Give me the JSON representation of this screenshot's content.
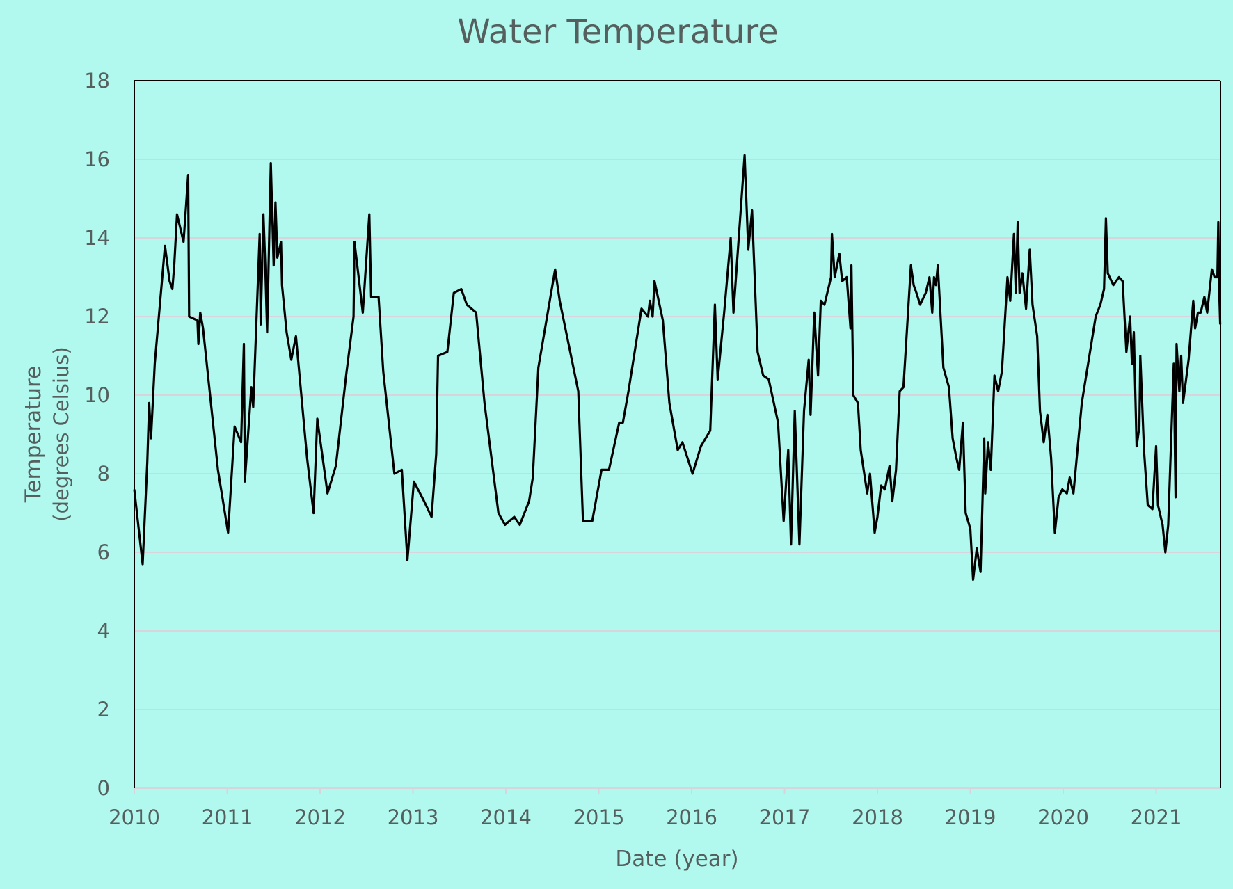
{
  "chart_data": {
    "type": "line",
    "title": "Water Temperature",
    "xlabel": "Date (year)",
    "ylabel": "Temperature",
    "ylabel_sub": "(degrees Celsius)",
    "xlim": [
      2010,
      2021.69
    ],
    "ylim": [
      0,
      18
    ],
    "x_ticks": [
      "2010",
      "2011",
      "2012",
      "2013",
      "2014",
      "2015",
      "2016",
      "2017",
      "2018",
      "2019",
      "2020",
      "2021"
    ],
    "y_ticks": [
      "0",
      "2",
      "4",
      "6",
      "8",
      "10",
      "12",
      "14",
      "16",
      "18"
    ],
    "grid": true,
    "colors": {
      "background": "#b1f9ee",
      "line": "#000000",
      "grid": "#d9d4dc",
      "text": "#555f5d"
    },
    "series": [
      {
        "name": "Water Temperature",
        "points": [
          [
            2010.0,
            7.6
          ],
          [
            2010.09,
            5.7
          ],
          [
            2010.14,
            8.3
          ],
          [
            2010.16,
            9.8
          ],
          [
            2010.18,
            8.9
          ],
          [
            2010.22,
            10.8
          ],
          [
            2010.33,
            13.8
          ],
          [
            2010.38,
            12.9
          ],
          [
            2010.41,
            12.7
          ],
          [
            2010.43,
            13.3
          ],
          [
            2010.46,
            14.6
          ],
          [
            2010.53,
            13.9
          ],
          [
            2010.58,
            15.6
          ],
          [
            2010.59,
            12.0
          ],
          [
            2010.68,
            11.9
          ],
          [
            2010.69,
            11.3
          ],
          [
            2010.71,
            12.1
          ],
          [
            2010.74,
            11.7
          ],
          [
            2010.9,
            8.1
          ],
          [
            2011.01,
            6.5
          ],
          [
            2011.08,
            9.2
          ],
          [
            2011.15,
            8.8
          ],
          [
            2011.18,
            11.3
          ],
          [
            2011.19,
            7.8
          ],
          [
            2011.26,
            10.2
          ],
          [
            2011.28,
            9.7
          ],
          [
            2011.35,
            14.1
          ],
          [
            2011.36,
            11.8
          ],
          [
            2011.39,
            14.6
          ],
          [
            2011.41,
            13.3
          ],
          [
            2011.43,
            11.6
          ],
          [
            2011.47,
            15.9
          ],
          [
            2011.5,
            13.3
          ],
          [
            2011.52,
            14.9
          ],
          [
            2011.54,
            13.5
          ],
          [
            2011.58,
            13.9
          ],
          [
            2011.59,
            12.8
          ],
          [
            2011.64,
            11.6
          ],
          [
            2011.69,
            10.9
          ],
          [
            2011.74,
            11.5
          ],
          [
            2011.86,
            8.4
          ],
          [
            2011.93,
            7.0
          ],
          [
            2011.97,
            9.4
          ],
          [
            2012.08,
            7.5
          ],
          [
            2012.17,
            8.2
          ],
          [
            2012.28,
            10.5
          ],
          [
            2012.36,
            12.0
          ],
          [
            2012.37,
            13.9
          ],
          [
            2012.42,
            12.9
          ],
          [
            2012.46,
            12.1
          ],
          [
            2012.53,
            14.6
          ],
          [
            2012.55,
            12.5
          ],
          [
            2012.63,
            12.5
          ],
          [
            2012.68,
            10.6
          ],
          [
            2012.8,
            8.0
          ],
          [
            2012.88,
            8.1
          ],
          [
            2012.94,
            5.8
          ],
          [
            2013.01,
            7.8
          ],
          [
            2013.12,
            7.3
          ],
          [
            2013.2,
            6.9
          ],
          [
            2013.25,
            8.5
          ],
          [
            2013.27,
            11.0
          ],
          [
            2013.37,
            11.1
          ],
          [
            2013.44,
            12.6
          ],
          [
            2013.52,
            12.7
          ],
          [
            2013.58,
            12.3
          ],
          [
            2013.68,
            12.1
          ],
          [
            2013.77,
            9.8
          ],
          [
            2013.92,
            7.0
          ],
          [
            2013.99,
            6.7
          ],
          [
            2014.09,
            6.9
          ],
          [
            2014.15,
            6.7
          ],
          [
            2014.25,
            7.3
          ],
          [
            2014.29,
            7.9
          ],
          [
            2014.35,
            10.7
          ],
          [
            2014.53,
            13.2
          ],
          [
            2014.58,
            12.4
          ],
          [
            2014.78,
            10.1
          ],
          [
            2014.83,
            6.8
          ],
          [
            2014.93,
            6.8
          ],
          [
            2015.03,
            8.1
          ],
          [
            2015.11,
            8.1
          ],
          [
            2015.22,
            9.3
          ],
          [
            2015.26,
            9.3
          ],
          [
            2015.32,
            10.1
          ],
          [
            2015.46,
            12.2
          ],
          [
            2015.53,
            12.0
          ],
          [
            2015.55,
            12.4
          ],
          [
            2015.58,
            12.0
          ],
          [
            2015.6,
            12.9
          ],
          [
            2015.69,
            11.9
          ],
          [
            2015.76,
            9.8
          ],
          [
            2015.85,
            8.6
          ],
          [
            2015.9,
            8.8
          ],
          [
            2016.01,
            8.0
          ],
          [
            2016.1,
            8.7
          ],
          [
            2016.2,
            9.1
          ],
          [
            2016.25,
            12.3
          ],
          [
            2016.28,
            10.4
          ],
          [
            2016.35,
            12.1
          ],
          [
            2016.42,
            14.0
          ],
          [
            2016.45,
            12.1
          ],
          [
            2016.57,
            16.1
          ],
          [
            2016.61,
            13.7
          ],
          [
            2016.65,
            14.7
          ],
          [
            2016.71,
            11.1
          ],
          [
            2016.77,
            10.5
          ],
          [
            2016.83,
            10.4
          ],
          [
            2016.93,
            9.3
          ],
          [
            2016.99,
            6.8
          ],
          [
            2017.04,
            8.6
          ],
          [
            2017.07,
            6.2
          ],
          [
            2017.11,
            9.6
          ],
          [
            2017.16,
            6.2
          ],
          [
            2017.21,
            9.6
          ],
          [
            2017.26,
            10.9
          ],
          [
            2017.28,
            9.5
          ],
          [
            2017.32,
            12.1
          ],
          [
            2017.36,
            10.5
          ],
          [
            2017.39,
            12.4
          ],
          [
            2017.43,
            12.3
          ],
          [
            2017.5,
            13.0
          ],
          [
            2017.51,
            14.1
          ],
          [
            2017.54,
            13.0
          ],
          [
            2017.59,
            13.6
          ],
          [
            2017.62,
            12.9
          ],
          [
            2017.67,
            13.0
          ],
          [
            2017.71,
            11.7
          ],
          [
            2017.72,
            13.3
          ],
          [
            2017.74,
            10.0
          ],
          [
            2017.79,
            9.8
          ],
          [
            2017.82,
            8.6
          ],
          [
            2017.89,
            7.5
          ],
          [
            2017.92,
            8.0
          ],
          [
            2017.97,
            6.5
          ],
          [
            2018.0,
            6.9
          ],
          [
            2018.04,
            7.7
          ],
          [
            2018.08,
            7.6
          ],
          [
            2018.13,
            8.2
          ],
          [
            2018.16,
            7.3
          ],
          [
            2018.2,
            8.1
          ],
          [
            2018.24,
            10.1
          ],
          [
            2018.28,
            10.2
          ],
          [
            2018.36,
            13.3
          ],
          [
            2018.39,
            12.8
          ],
          [
            2018.42,
            12.6
          ],
          [
            2018.46,
            12.3
          ],
          [
            2018.52,
            12.6
          ],
          [
            2018.56,
            13.0
          ],
          [
            2018.59,
            12.1
          ],
          [
            2018.61,
            13.0
          ],
          [
            2018.63,
            12.8
          ],
          [
            2018.65,
            13.3
          ],
          [
            2018.71,
            10.7
          ],
          [
            2018.77,
            10.2
          ],
          [
            2018.81,
            8.9
          ],
          [
            2018.85,
            8.4
          ],
          [
            2018.88,
            8.1
          ],
          [
            2018.92,
            9.3
          ],
          [
            2018.95,
            7.0
          ],
          [
            2019.0,
            6.6
          ],
          [
            2019.03,
            5.3
          ],
          [
            2019.07,
            6.1
          ],
          [
            2019.11,
            5.5
          ],
          [
            2019.15,
            8.9
          ],
          [
            2019.16,
            7.5
          ],
          [
            2019.19,
            8.8
          ],
          [
            2019.22,
            8.1
          ],
          [
            2019.26,
            10.5
          ],
          [
            2019.3,
            10.1
          ],
          [
            2019.34,
            10.6
          ],
          [
            2019.4,
            13.0
          ],
          [
            2019.43,
            12.4
          ],
          [
            2019.47,
            14.1
          ],
          [
            2019.49,
            12.6
          ],
          [
            2019.51,
            14.4
          ],
          [
            2019.53,
            12.6
          ],
          [
            2019.56,
            13.1
          ],
          [
            2019.6,
            12.2
          ],
          [
            2019.64,
            13.7
          ],
          [
            2019.67,
            12.3
          ],
          [
            2019.72,
            11.5
          ],
          [
            2019.75,
            9.6
          ],
          [
            2019.79,
            8.8
          ],
          [
            2019.83,
            9.5
          ],
          [
            2019.87,
            8.4
          ],
          [
            2019.91,
            6.5
          ],
          [
            2019.95,
            7.4
          ],
          [
            2019.99,
            7.6
          ],
          [
            2020.04,
            7.5
          ],
          [
            2020.07,
            7.9
          ],
          [
            2020.11,
            7.5
          ],
          [
            2020.2,
            9.8
          ],
          [
            2020.35,
            12.0
          ],
          [
            2020.4,
            12.3
          ],
          [
            2020.44,
            12.7
          ],
          [
            2020.46,
            14.5
          ],
          [
            2020.48,
            13.1
          ],
          [
            2020.54,
            12.8
          ],
          [
            2020.6,
            13.0
          ],
          [
            2020.64,
            12.9
          ],
          [
            2020.68,
            11.1
          ],
          [
            2020.72,
            12.0
          ],
          [
            2020.74,
            10.8
          ],
          [
            2020.76,
            11.6
          ],
          [
            2020.79,
            8.7
          ],
          [
            2020.82,
            9.2
          ],
          [
            2020.83,
            11.0
          ],
          [
            2020.87,
            8.6
          ],
          [
            2020.91,
            7.2
          ],
          [
            2020.96,
            7.1
          ],
          [
            2021.0,
            8.7
          ],
          [
            2021.02,
            7.2
          ],
          [
            2021.07,
            6.7
          ],
          [
            2021.1,
            6.0
          ],
          [
            2021.13,
            6.7
          ],
          [
            2021.19,
            10.8
          ],
          [
            2021.21,
            7.4
          ],
          [
            2021.22,
            11.3
          ],
          [
            2021.25,
            10.1
          ],
          [
            2021.27,
            11.0
          ],
          [
            2021.29,
            9.8
          ],
          [
            2021.35,
            10.9
          ],
          [
            2021.4,
            12.4
          ],
          [
            2021.42,
            11.7
          ],
          [
            2021.45,
            12.1
          ],
          [
            2021.48,
            12.1
          ],
          [
            2021.52,
            12.5
          ],
          [
            2021.55,
            12.1
          ],
          [
            2021.6,
            13.2
          ],
          [
            2021.63,
            13.0
          ],
          [
            2021.66,
            13.0
          ],
          [
            2021.67,
            14.4
          ],
          [
            2021.68,
            12.6
          ],
          [
            2021.69,
            11.8
          ]
        ]
      }
    ]
  }
}
